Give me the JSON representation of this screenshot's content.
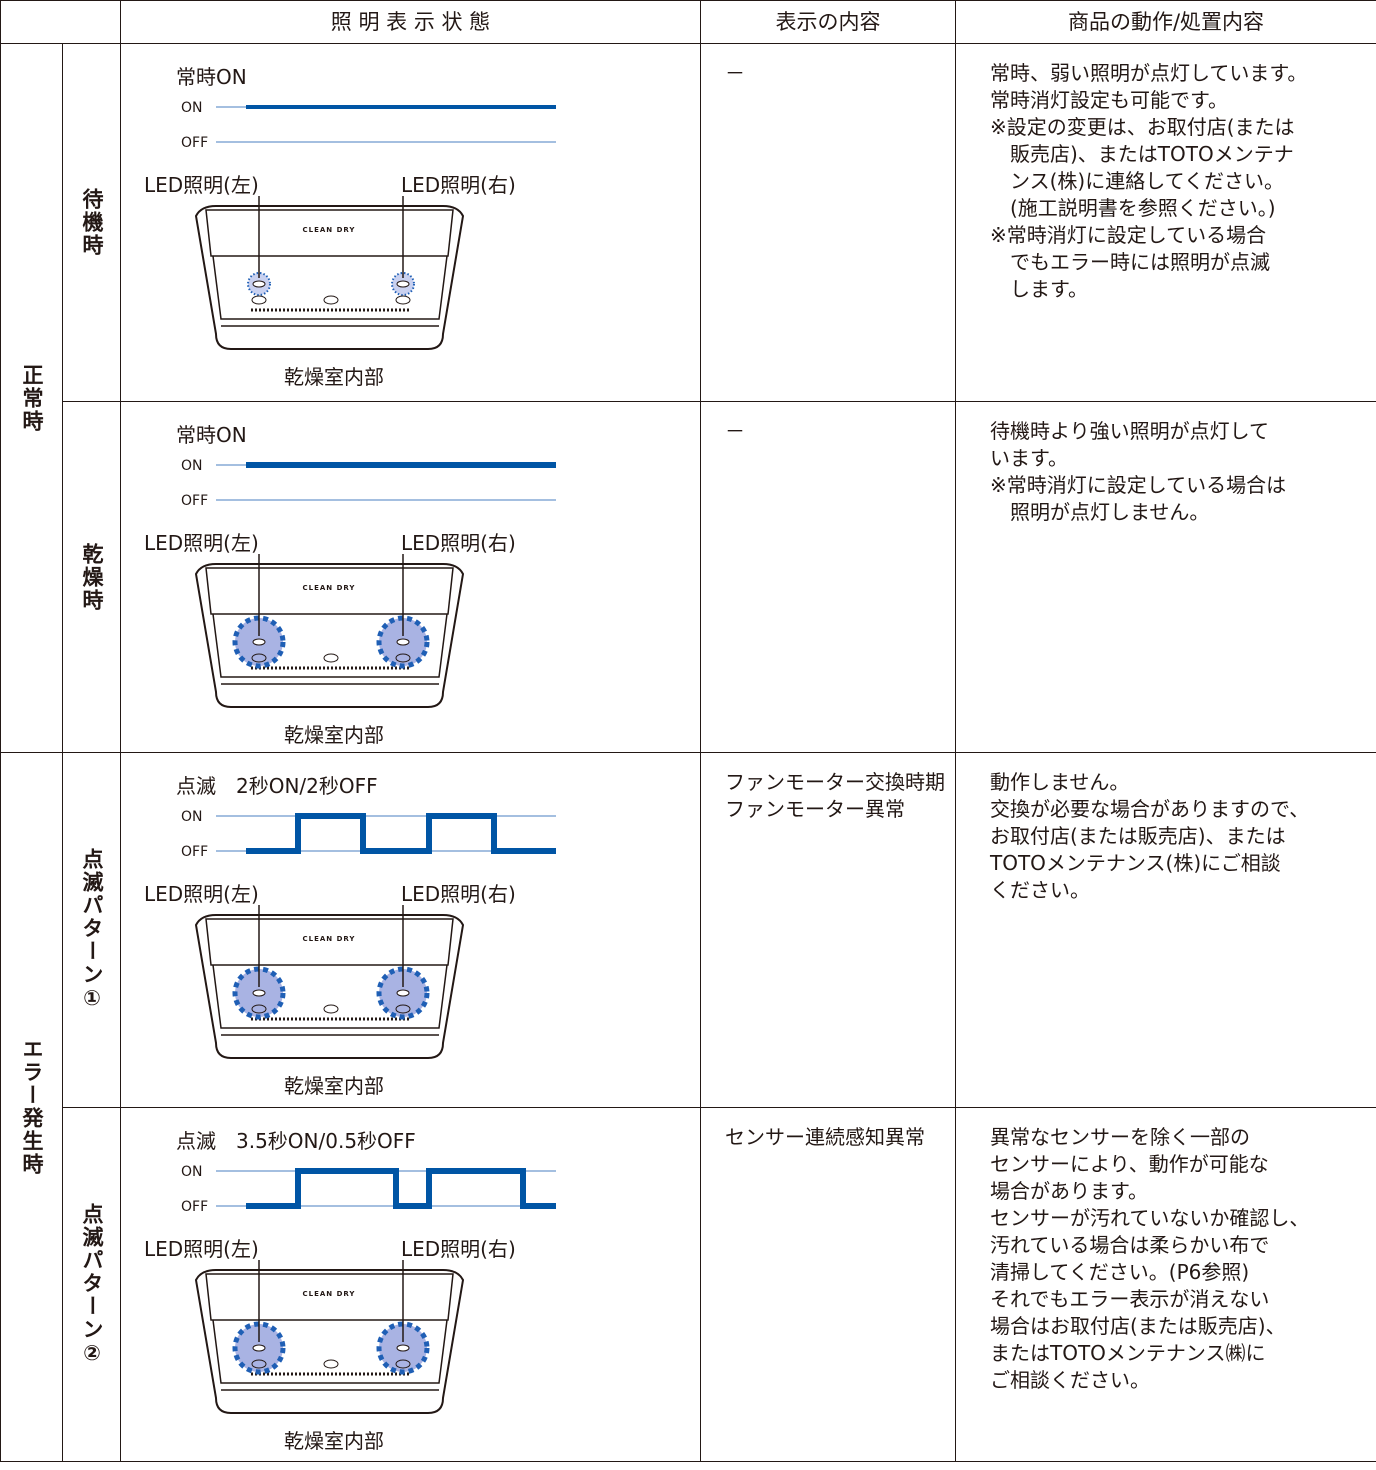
{
  "header": {
    "cells": [
      "照 明 表 示 状 態",
      "表示の内容",
      "商品の動作/処置内容"
    ]
  },
  "groups": [
    {
      "label": "正常時",
      "rows": [
        {
          "label": "待機時",
          "pattern": "常時ON",
          "on": "ON",
          "off": "OFF",
          "led_left": "LED照明(左)",
          "led_right": "LED照明(右)",
          "device": "CLEAN DRY",
          "caption": "乾燥室内部",
          "display": [
            "－"
          ],
          "actions": [
            [
              "常時、弱い照明が点灯しています。"
            ],
            [
              "常時消灯設定も可能です。"
            ],
            [
              "※設定の変更は、お取付店(または",
              "販売店)、またはTOTOメンテナ",
              "ンス(株)に連絡してください。",
              "(施工説明書を参照ください。)"
            ],
            [
              "※常時消灯に設定している場合",
              "でもエラー時には照明が点滅",
              "します。"
            ]
          ]
        },
        {
          "label": "乾燥時",
          "pattern": "常時ON",
          "on": "ON",
          "off": "OFF",
          "led_left": "LED照明(左)",
          "led_right": "LED照明(右)",
          "device": "CLEAN DRY",
          "caption": "乾燥室内部",
          "display": [
            "－"
          ],
          "actions": [
            [
              "待機時より強い照明が点灯して",
              "います。"
            ],
            [
              "※常時消灯に設定している場合は",
              "照明が点灯しません。"
            ]
          ]
        }
      ]
    },
    {
      "label": "エラー発生時",
      "rows": [
        {
          "label": "点滅パターン①",
          "pattern": "点滅　2秒ON/2秒OFF",
          "on": "ON",
          "off": "OFF",
          "led_left": "LED照明(左)",
          "led_right": "LED照明(右)",
          "device": "CLEAN DRY",
          "caption": "乾燥室内部",
          "display": [
            "ファンモーター交換時期",
            "ファンモーター異常"
          ],
          "actions": [
            [
              "動作しません。"
            ],
            [
              "交換が必要な場合がありますので、"
            ],
            [
              "お取付店(または販売店)、または"
            ],
            [
              "TOTOメンテナンス(株)にご相談"
            ],
            [
              "ください。"
            ]
          ]
        },
        {
          "label": "点滅パターン②",
          "pattern": "点滅　3.5秒ON/0.5秒OFF",
          "on": "ON",
          "off": "OFF",
          "led_left": "LED照明(左)",
          "led_right": "LED照明(右)",
          "device": "CLEAN DRY",
          "caption": "乾燥室内部",
          "display": [
            "センサー連続感知異常"
          ],
          "actions": [
            [
              "異常なセンサーを除く一部の"
            ],
            [
              "センサーにより、動作が可能な"
            ],
            [
              "場合があります。"
            ],
            [
              "センサーが汚れていないか確認し、"
            ],
            [
              "汚れている場合は柔らかい布で"
            ],
            [
              "清掃してください。(P6参照)"
            ],
            [
              "それでもエラー表示が消えない"
            ],
            [
              "場合はお取付店(または販売店)、"
            ],
            [
              "またはTOTOメンテナンス㈱に"
            ],
            [
              "ご相談ください。"
            ]
          ]
        }
      ]
    }
  ]
}
